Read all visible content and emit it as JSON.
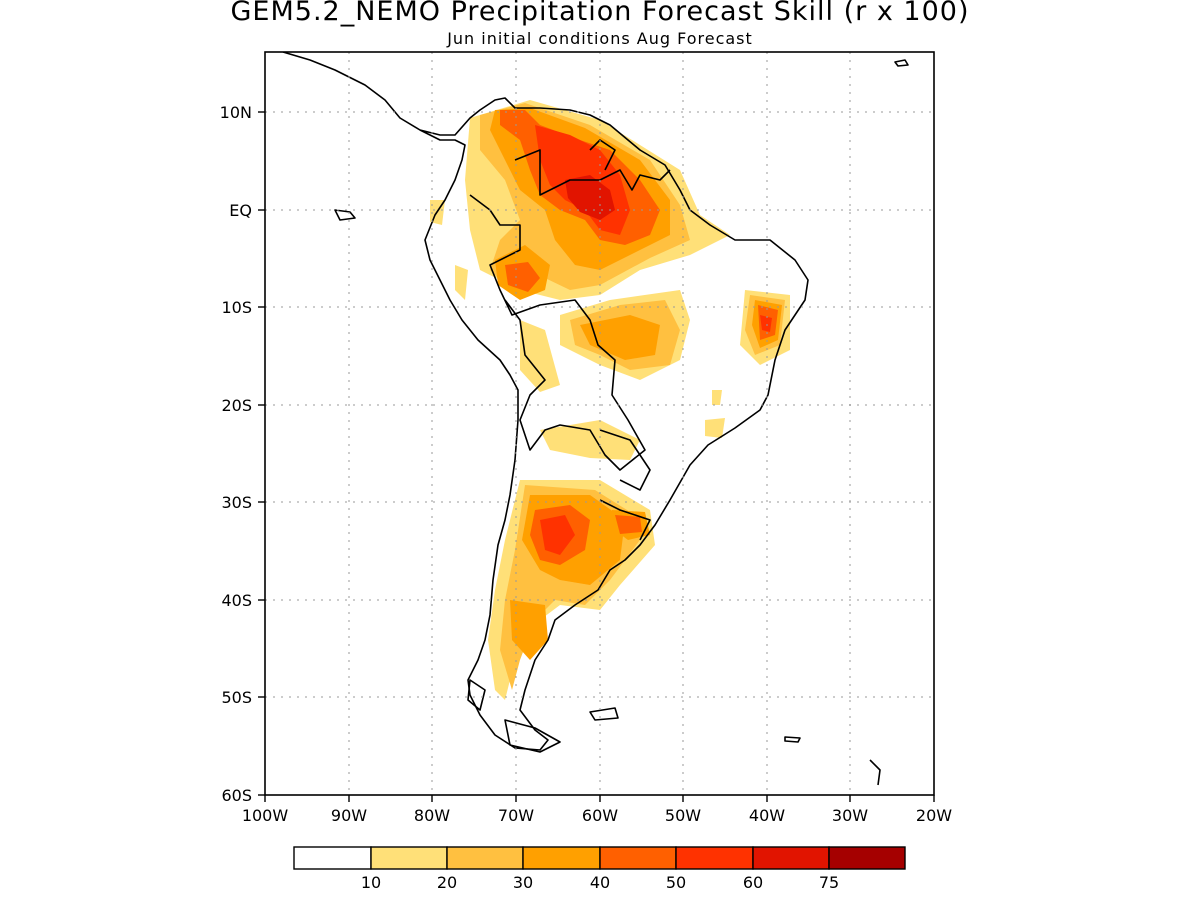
{
  "title": "GEM5.2_NEMO Precipitation Forecast Skill (r x 100)",
  "subtitle": "Jun initial conditions  Aug Forecast",
  "map": {
    "lon_labels": [
      "100W",
      "90W",
      "80W",
      "70W",
      "60W",
      "50W",
      "40W",
      "30W",
      "20W"
    ],
    "lat_labels": [
      "10N",
      "EQ",
      "10S",
      "20S",
      "30S",
      "40S",
      "50S",
      "60S"
    ],
    "grid": true
  },
  "legend": {
    "tick_labels": [
      "10",
      "20",
      "30",
      "40",
      "50",
      "60",
      "75"
    ],
    "colors": [
      "#ffffff",
      "#ffe078",
      "#ffc040",
      "#ffa000",
      "#ff6000",
      "#ff3200",
      "#e11400",
      "#a50000"
    ]
  }
}
